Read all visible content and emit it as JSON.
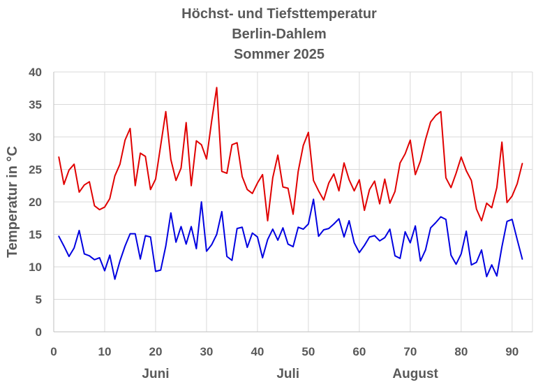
{
  "chart_data": {
    "type": "line",
    "title": [
      "Höchst- und Tiefsttemperatur",
      "Berlin-Dahlem",
      "Sommer 2025"
    ],
    "ylabel": "Temperatur in °C",
    "xlabel": "",
    "xlim": [
      0,
      94
    ],
    "ylim": [
      0,
      40
    ],
    "x_ticks": [
      0,
      10,
      20,
      30,
      40,
      50,
      60,
      70,
      80,
      90
    ],
    "y_ticks": [
      0,
      5,
      10,
      15,
      20,
      25,
      30,
      35,
      40
    ],
    "grid": true,
    "month_labels": [
      {
        "label": "Juni",
        "x": 20
      },
      {
        "label": "Juli",
        "x": 46
      },
      {
        "label": "August",
        "x": 71
      }
    ],
    "x": [
      1,
      2,
      3,
      4,
      5,
      6,
      7,
      8,
      9,
      10,
      11,
      12,
      13,
      14,
      15,
      16,
      17,
      18,
      19,
      20,
      21,
      22,
      23,
      24,
      25,
      26,
      27,
      28,
      29,
      30,
      31,
      32,
      33,
      34,
      35,
      36,
      37,
      38,
      39,
      40,
      41,
      42,
      43,
      44,
      45,
      46,
      47,
      48,
      49,
      50,
      51,
      52,
      53,
      54,
      55,
      56,
      57,
      58,
      59,
      60,
      61,
      62,
      63,
      64,
      65,
      66,
      67,
      68,
      69,
      70,
      71,
      72,
      73,
      74,
      75,
      76,
      77,
      78,
      79,
      80,
      81,
      82,
      83,
      84,
      85,
      86,
      87,
      88,
      89,
      90,
      91,
      92
    ],
    "series": [
      {
        "color": "#e00000",
        "values": [
          26.9,
          22.7,
          24.9,
          25.8,
          21.5,
          22.6,
          23.1,
          19.4,
          18.8,
          19.2,
          20.5,
          24.0,
          25.8,
          29.5,
          31.3,
          22.5,
          27.5,
          27.0,
          21.9,
          23.5,
          28.7,
          33.9,
          26.5,
          23.3,
          25.2,
          32.2,
          22.5,
          29.4,
          28.8,
          26.6,
          32.4,
          37.6,
          24.7,
          24.4,
          28.8,
          29.1,
          23.9,
          21.9,
          21.3,
          22.9,
          24.2,
          17.1,
          23.7,
          27.2,
          22.3,
          22.1,
          18.1,
          24.7,
          28.7,
          30.7,
          23.3,
          21.7,
          20.3,
          22.9,
          24.3,
          21.7,
          26.0,
          23.4,
          21.7,
          23.4,
          18.7,
          21.9,
          23.2,
          19.7,
          23.5,
          19.8,
          21.6,
          26.0,
          27.4,
          29.5,
          24.2,
          26.3,
          29.6,
          32.3,
          33.3,
          33.9,
          23.7,
          22.2,
          24.4,
          26.9,
          24.8,
          23.3,
          18.9,
          17.1,
          19.8,
          19.1,
          22.2,
          29.2,
          19.9,
          20.9,
          22.8,
          25.9
        ]
      },
      {
        "color": "#0000e0",
        "values": [
          14.7,
          13.2,
          11.6,
          12.9,
          15.6,
          12.0,
          11.7,
          11.1,
          11.4,
          9.4,
          11.8,
          8.1,
          10.9,
          13.2,
          15.1,
          15.1,
          11.2,
          14.8,
          14.6,
          9.3,
          9.5,
          13.2,
          18.3,
          13.8,
          16.2,
          13.5,
          16.2,
          12.8,
          20.0,
          12.4,
          13.4,
          15.0,
          18.5,
          11.6,
          11.0,
          15.9,
          16.1,
          13.0,
          15.2,
          14.6,
          11.4,
          14.2,
          15.8,
          14.1,
          16.0,
          13.5,
          13.1,
          16.1,
          15.8,
          16.6,
          20.4,
          14.7,
          15.7,
          15.9,
          16.6,
          17.4,
          14.6,
          17.1,
          13.7,
          12.2,
          13.3,
          14.6,
          14.8,
          14.0,
          14.5,
          15.8,
          11.7,
          11.3,
          15.4,
          13.7,
          16.3,
          10.9,
          12.6,
          16.0,
          16.8,
          17.7,
          17.3,
          11.8,
          10.4,
          12.0,
          15.5,
          10.3,
          10.7,
          12.6,
          8.5,
          10.3,
          8.6,
          13.1,
          17.0,
          17.3,
          14.2,
          11.2
        ]
      }
    ]
  }
}
